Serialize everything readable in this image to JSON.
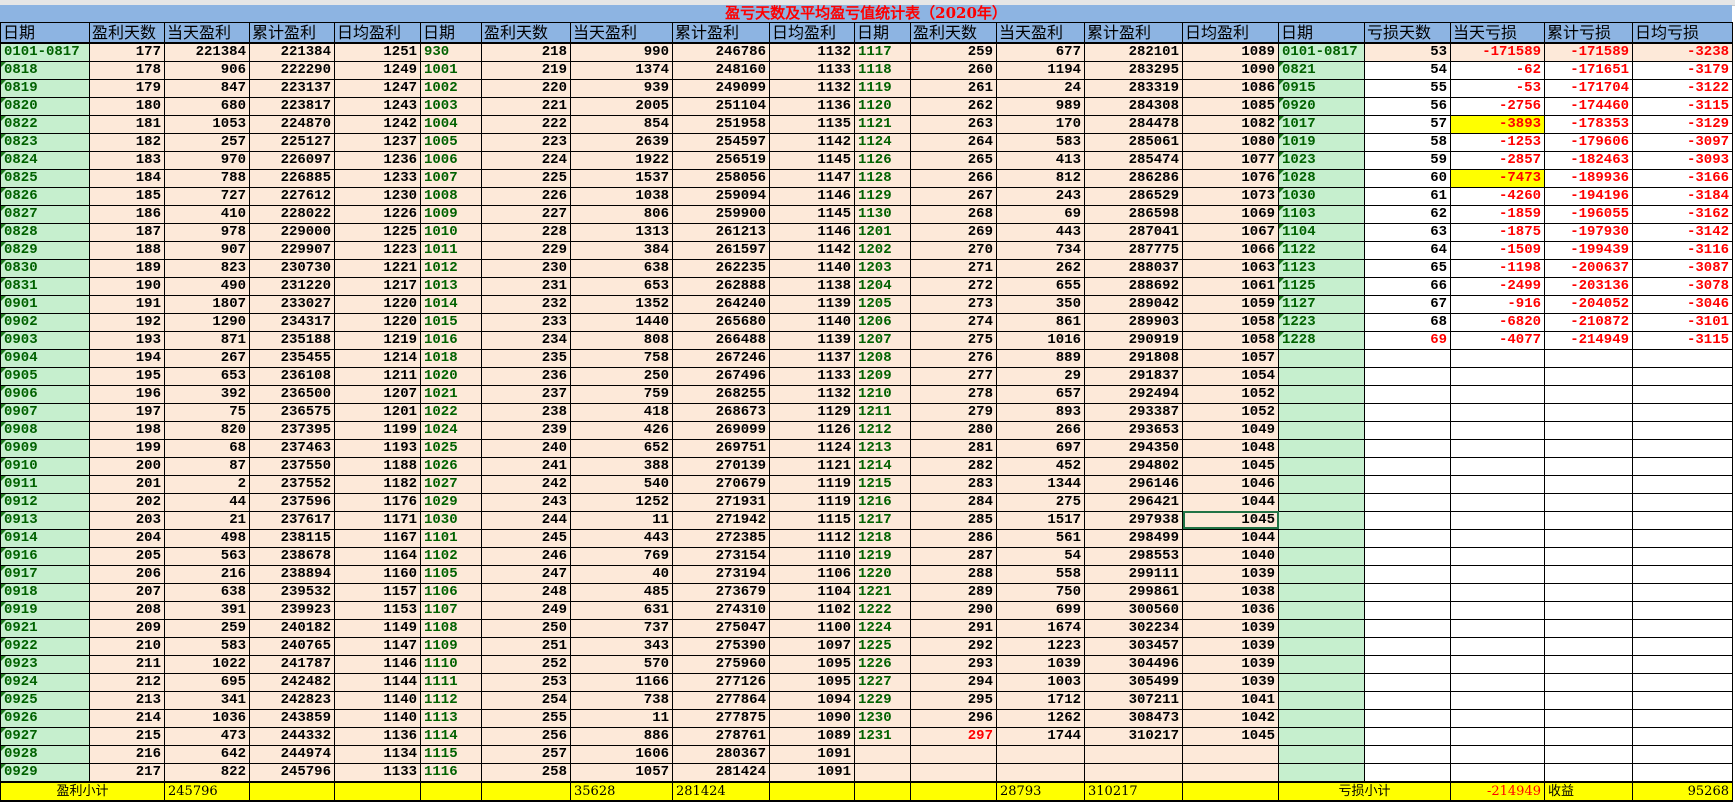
{
  "title": "盈亏天数及平均盈亏值统计表（2020年）",
  "colors": {
    "header_bg": "#8db4e2",
    "title": "#ff0000",
    "date_bg": "#c6efce",
    "date_text": "#006100",
    "profit_bg": "#fde9d9",
    "loss_text": "#ff0000",
    "highlight": "#ffff00",
    "footer_bg": "#ffff00"
  },
  "headers": [
    "日期",
    "盈利天数",
    "当天盈利",
    "累计盈利",
    "日均盈利",
    "日期",
    "盈利天数",
    "当天盈利",
    "累计盈利",
    "日均盈利",
    "日期",
    "盈利天数",
    "当天盈利",
    "累计盈利",
    "日均盈利",
    "日期",
    "亏损天数",
    "当天亏损",
    "累计亏损",
    "日均亏损"
  ],
  "rows": [
    [
      "0101-0817",
      "177",
      "221384",
      "221384",
      "1251",
      "930",
      "218",
      "990",
      "246786",
      "1132",
      "1117",
      "259",
      "677",
      "282101",
      "1089",
      "0101-0817",
      "53",
      "-171589",
      "-171589",
      "-3238"
    ],
    [
      "0818",
      "178",
      "906",
      "222290",
      "1249",
      "1001",
      "219",
      "1374",
      "248160",
      "1133",
      "1118",
      "260",
      "1194",
      "283295",
      "1090",
      "0821",
      "54",
      "-62",
      "-171651",
      "-3179"
    ],
    [
      "0819",
      "179",
      "847",
      "223137",
      "1247",
      "1002",
      "220",
      "939",
      "249099",
      "1132",
      "1119",
      "261",
      "24",
      "283319",
      "1086",
      "0915",
      "55",
      "-53",
      "-171704",
      "-3122"
    ],
    [
      "0820",
      "180",
      "680",
      "223817",
      "1243",
      "1003",
      "221",
      "2005",
      "251104",
      "1136",
      "1120",
      "262",
      "989",
      "284308",
      "1085",
      "0920",
      "56",
      "-2756",
      "-174460",
      "-3115"
    ],
    [
      "0822",
      "181",
      "1053",
      "224870",
      "1242",
      "1004",
      "222",
      "854",
      "251958",
      "1135",
      "1121",
      "263",
      "170",
      "284478",
      "1082",
      "1017",
      "57",
      "-3893",
      "-178353",
      "-3129"
    ],
    [
      "0823",
      "182",
      "257",
      "225127",
      "1237",
      "1005",
      "223",
      "2639",
      "254597",
      "1142",
      "1124",
      "264",
      "583",
      "285061",
      "1080",
      "1019",
      "58",
      "-1253",
      "-179606",
      "-3097"
    ],
    [
      "0824",
      "183",
      "970",
      "226097",
      "1236",
      "1006",
      "224",
      "1922",
      "256519",
      "1145",
      "1126",
      "265",
      "413",
      "285474",
      "1077",
      "1023",
      "59",
      "-2857",
      "-182463",
      "-3093"
    ],
    [
      "0825",
      "184",
      "788",
      "226885",
      "1233",
      "1007",
      "225",
      "1537",
      "258056",
      "1147",
      "1128",
      "266",
      "812",
      "286286",
      "1076",
      "1028",
      "60",
      "-7473",
      "-189936",
      "-3166"
    ],
    [
      "0826",
      "185",
      "727",
      "227612",
      "1230",
      "1008",
      "226",
      "1038",
      "259094",
      "1146",
      "1129",
      "267",
      "243",
      "286529",
      "1073",
      "1030",
      "61",
      "-4260",
      "-194196",
      "-3184"
    ],
    [
      "0827",
      "186",
      "410",
      "228022",
      "1226",
      "1009",
      "227",
      "806",
      "259900",
      "1145",
      "1130",
      "268",
      "69",
      "286598",
      "1069",
      "1103",
      "62",
      "-1859",
      "-196055",
      "-3162"
    ],
    [
      "0828",
      "187",
      "978",
      "229000",
      "1225",
      "1010",
      "228",
      "1313",
      "261213",
      "1146",
      "1201",
      "269",
      "443",
      "287041",
      "1067",
      "1104",
      "63",
      "-1875",
      "-197930",
      "-3142"
    ],
    [
      "0829",
      "188",
      "907",
      "229907",
      "1223",
      "1011",
      "229",
      "384",
      "261597",
      "1142",
      "1202",
      "270",
      "734",
      "287775",
      "1066",
      "1122",
      "64",
      "-1509",
      "-199439",
      "-3116"
    ],
    [
      "0830",
      "189",
      "823",
      "230730",
      "1221",
      "1012",
      "230",
      "638",
      "262235",
      "1140",
      "1203",
      "271",
      "262",
      "288037",
      "1063",
      "1123",
      "65",
      "-1198",
      "-200637",
      "-3087"
    ],
    [
      "0831",
      "190",
      "490",
      "231220",
      "1217",
      "1013",
      "231",
      "653",
      "262888",
      "1138",
      "1204",
      "272",
      "655",
      "288692",
      "1061",
      "1125",
      "66",
      "-2499",
      "-203136",
      "-3078"
    ],
    [
      "0901",
      "191",
      "1807",
      "233027",
      "1220",
      "1014",
      "232",
      "1352",
      "264240",
      "1139",
      "1205",
      "273",
      "350",
      "289042",
      "1059",
      "1127",
      "67",
      "-916",
      "-204052",
      "-3046"
    ],
    [
      "0902",
      "192",
      "1290",
      "234317",
      "1220",
      "1015",
      "233",
      "1440",
      "265680",
      "1140",
      "1206",
      "274",
      "861",
      "289903",
      "1058",
      "1223",
      "68",
      "-6820",
      "-210872",
      "-3101"
    ],
    [
      "0903",
      "193",
      "871",
      "235188",
      "1219",
      "1016",
      "234",
      "808",
      "266488",
      "1139",
      "1207",
      "275",
      "1016",
      "290919",
      "1058",
      "1228",
      "69",
      "-4077",
      "-214949",
      "-3115"
    ],
    [
      "0904",
      "194",
      "267",
      "235455",
      "1214",
      "1018",
      "235",
      "758",
      "267246",
      "1137",
      "1208",
      "276",
      "889",
      "291808",
      "1057",
      "",
      "",
      "",
      "",
      ""
    ],
    [
      "0905",
      "195",
      "653",
      "236108",
      "1211",
      "1020",
      "236",
      "250",
      "267496",
      "1133",
      "1209",
      "277",
      "29",
      "291837",
      "1054",
      "",
      "",
      "",
      "",
      ""
    ],
    [
      "0906",
      "196",
      "392",
      "236500",
      "1207",
      "1021",
      "237",
      "759",
      "268255",
      "1132",
      "1210",
      "278",
      "657",
      "292494",
      "1052",
      "",
      "",
      "",
      "",
      ""
    ],
    [
      "0907",
      "197",
      "75",
      "236575",
      "1201",
      "1022",
      "238",
      "418",
      "268673",
      "1129",
      "1211",
      "279",
      "893",
      "293387",
      "1052",
      "",
      "",
      "",
      "",
      ""
    ],
    [
      "0908",
      "198",
      "820",
      "237395",
      "1199",
      "1024",
      "239",
      "426",
      "269099",
      "1126",
      "1212",
      "280",
      "266",
      "293653",
      "1049",
      "",
      "",
      "",
      "",
      ""
    ],
    [
      "0909",
      "199",
      "68",
      "237463",
      "1193",
      "1025",
      "240",
      "652",
      "269751",
      "1124",
      "1213",
      "281",
      "697",
      "294350",
      "1048",
      "",
      "",
      "",
      "",
      ""
    ],
    [
      "0910",
      "200",
      "87",
      "237550",
      "1188",
      "1026",
      "241",
      "388",
      "270139",
      "1121",
      "1214",
      "282",
      "452",
      "294802",
      "1045",
      "",
      "",
      "",
      "",
      ""
    ],
    [
      "0911",
      "201",
      "2",
      "237552",
      "1182",
      "1027",
      "242",
      "540",
      "270679",
      "1119",
      "1215",
      "283",
      "1344",
      "296146",
      "1046",
      "",
      "",
      "",
      "",
      ""
    ],
    [
      "0912",
      "202",
      "44",
      "237596",
      "1176",
      "1029",
      "243",
      "1252",
      "271931",
      "1119",
      "1216",
      "284",
      "275",
      "296421",
      "1044",
      "",
      "",
      "",
      "",
      ""
    ],
    [
      "0913",
      "203",
      "21",
      "237617",
      "1171",
      "1030",
      "244",
      "11",
      "271942",
      "1115",
      "1217",
      "285",
      "1517",
      "297938",
      "1045",
      "",
      "",
      "",
      "",
      ""
    ],
    [
      "0914",
      "204",
      "498",
      "238115",
      "1167",
      "1101",
      "245",
      "443",
      "272385",
      "1112",
      "1218",
      "286",
      "561",
      "298499",
      "1044",
      "",
      "",
      "",
      "",
      ""
    ],
    [
      "0916",
      "205",
      "563",
      "238678",
      "1164",
      "1102",
      "246",
      "769",
      "273154",
      "1110",
      "1219",
      "287",
      "54",
      "298553",
      "1040",
      "",
      "",
      "",
      "",
      ""
    ],
    [
      "0917",
      "206",
      "216",
      "238894",
      "1160",
      "1105",
      "247",
      "40",
      "273194",
      "1106",
      "1220",
      "288",
      "558",
      "299111",
      "1039",
      "",
      "",
      "",
      "",
      ""
    ],
    [
      "0918",
      "207",
      "638",
      "239532",
      "1157",
      "1106",
      "248",
      "485",
      "273679",
      "1104",
      "1221",
      "289",
      "750",
      "299861",
      "1038",
      "",
      "",
      "",
      "",
      ""
    ],
    [
      "0919",
      "208",
      "391",
      "239923",
      "1153",
      "1107",
      "249",
      "631",
      "274310",
      "1102",
      "1222",
      "290",
      "699",
      "300560",
      "1036",
      "",
      "",
      "",
      "",
      ""
    ],
    [
      "0921",
      "209",
      "259",
      "240182",
      "1149",
      "1108",
      "250",
      "737",
      "275047",
      "1100",
      "1224",
      "291",
      "1674",
      "302234",
      "1039",
      "",
      "",
      "",
      "",
      ""
    ],
    [
      "0922",
      "210",
      "583",
      "240765",
      "1147",
      "1109",
      "251",
      "343",
      "275390",
      "1097",
      "1225",
      "292",
      "1223",
      "303457",
      "1039",
      "",
      "",
      "",
      "",
      ""
    ],
    [
      "0923",
      "211",
      "1022",
      "241787",
      "1146",
      "1110",
      "252",
      "570",
      "275960",
      "1095",
      "1226",
      "293",
      "1039",
      "304496",
      "1039",
      "",
      "",
      "",
      "",
      ""
    ],
    [
      "0924",
      "212",
      "695",
      "242482",
      "1144",
      "1111",
      "253",
      "1166",
      "277126",
      "1095",
      "1227",
      "294",
      "1003",
      "305499",
      "1039",
      "",
      "",
      "",
      "",
      ""
    ],
    [
      "0925",
      "213",
      "341",
      "242823",
      "1140",
      "1112",
      "254",
      "738",
      "277864",
      "1094",
      "1229",
      "295",
      "1712",
      "307211",
      "1041",
      "",
      "",
      "",
      "",
      ""
    ],
    [
      "0926",
      "214",
      "1036",
      "243859",
      "1140",
      "1113",
      "255",
      "11",
      "277875",
      "1090",
      "1230",
      "296",
      "1262",
      "308473",
      "1042",
      "",
      "",
      "",
      "",
      ""
    ],
    [
      "0927",
      "215",
      "473",
      "244332",
      "1136",
      "1114",
      "256",
      "886",
      "278761",
      "1089",
      "1231",
      "297",
      "1744",
      "310217",
      "1045",
      "",
      "",
      "",
      "",
      ""
    ],
    [
      "0928",
      "216",
      "642",
      "244974",
      "1134",
      "1115",
      "257",
      "1606",
      "280367",
      "1091",
      "",
      "",
      "",
      "",
      "",
      "",
      "",
      "",
      "",
      ""
    ],
    [
      "0929",
      "217",
      "822",
      "245796",
      "1133",
      "1116",
      "258",
      "1057",
      "281424",
      "1091",
      "",
      "",
      "",
      "",
      "",
      "",
      "",
      "",
      "",
      ""
    ]
  ],
  "highlighted_cells": [
    [
      4,
      17
    ],
    [
      7,
      17
    ]
  ],
  "red_cells": [
    [
      16,
      16
    ],
    [
      38,
      11
    ]
  ],
  "selected_cell": [
    26,
    14
  ],
  "footer": {
    "profit_label": "盈利小计",
    "profit_total_1": "245796",
    "profit_today_2": "35628",
    "profit_total_2": "281424",
    "profit_today_3": "28793",
    "profit_total_3": "310217",
    "loss_label": "亏损小计",
    "loss_total": "-214949",
    "income_label": "收益",
    "income_value": "95268"
  }
}
